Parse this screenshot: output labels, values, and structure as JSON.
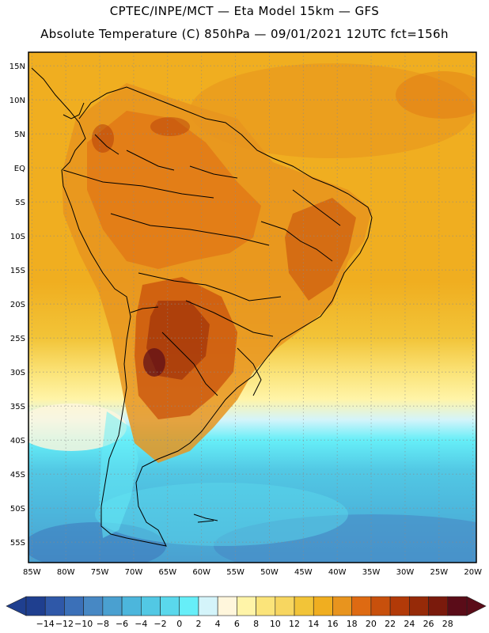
{
  "header": {
    "line1": "CPTEC/INPE/MCT —  Eta Model 15km — GFS",
    "line2": "Absolute Temperature (C) 850hPa — 09/01/2021 12UTC fct=156h"
  },
  "map": {
    "lat_labels": [
      "15N",
      "10N",
      "5N",
      "EQ",
      "5S",
      "10S",
      "15S",
      "20S",
      "25S",
      "30S",
      "35S",
      "40S",
      "45S",
      "50S",
      "55S"
    ],
    "lon_labels": [
      "85W",
      "80W",
      "75W",
      "70W",
      "65W",
      "60W",
      "55W",
      "50W",
      "45W",
      "40W",
      "35W",
      "30W",
      "25W",
      "20W"
    ],
    "lat_values": [
      15,
      10,
      5,
      0,
      -5,
      -10,
      -15,
      -20,
      -25,
      -30,
      -35,
      -40,
      -45,
      -50,
      -55
    ],
    "lon_values": [
      -85,
      -80,
      -75,
      -70,
      -65,
      -60,
      -55,
      -50,
      -45,
      -40,
      -35,
      -30,
      -25,
      -20
    ],
    "extent": {
      "lon_min": -85.5,
      "lon_max": -19.5,
      "lat_min": -58,
      "lat_max": 17
    }
  },
  "colorbar": {
    "labels": [
      "-14",
      "-12",
      "-10",
      "-8",
      "-6",
      "-4",
      "-2",
      "0",
      "2",
      "4",
      "6",
      "8",
      "10",
      "12",
      "14",
      "16",
      "18",
      "20",
      "22",
      "24",
      "26",
      "28"
    ],
    "colors": [
      "#1f3f8f",
      "#2f58a8",
      "#3b70b8",
      "#4788c4",
      "#4aa0d0",
      "#4cb6dc",
      "#52c8e4",
      "#5ad8ec",
      "#66eef8",
      "#d4f4fa",
      "#fff6dc",
      "#fff4a8",
      "#fbe47a",
      "#f7d660",
      "#f2c438",
      "#f0ae20",
      "#e8941e",
      "#de6a12",
      "#c8500c",
      "#b23a08",
      "#962a08",
      "#7a1a0c",
      "#5a0c18"
    ]
  }
}
